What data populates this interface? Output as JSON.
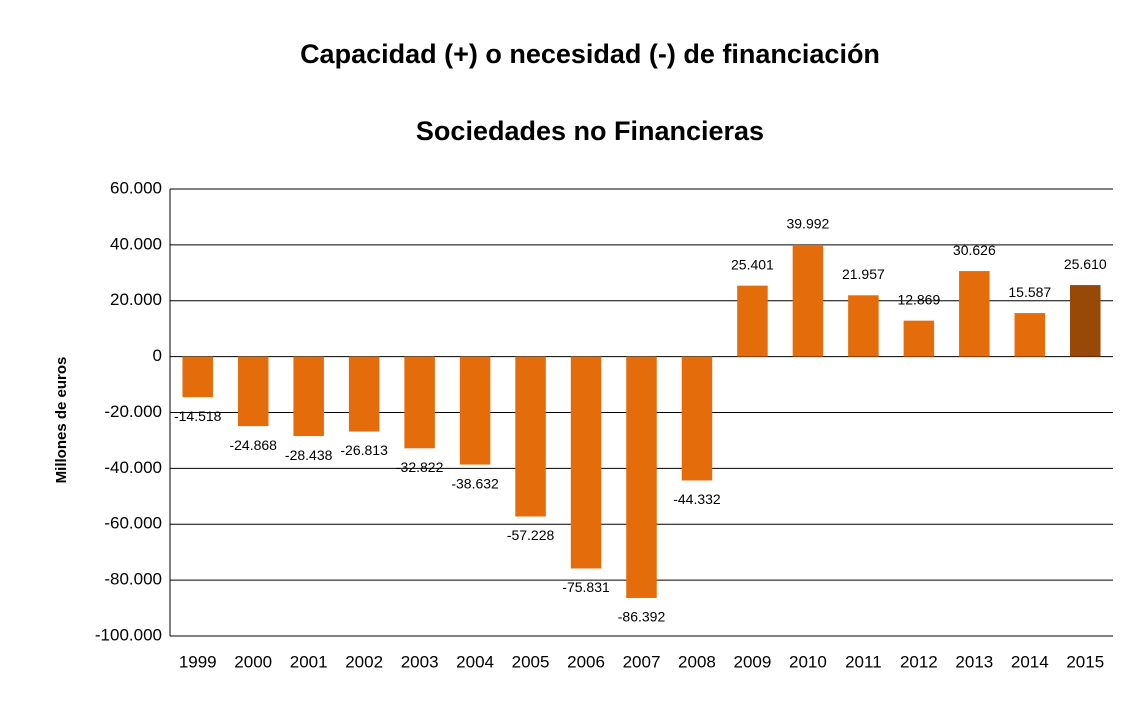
{
  "chart_data": {
    "type": "bar",
    "title": "Capacidad (+) o necesidad (-) de financiación",
    "subtitle": "Sociedades no Financieras",
    "y_label": "Millones  de euros",
    "categories": [
      "1999",
      "2000",
      "2001",
      "2002",
      "2003",
      "2004",
      "2005",
      "2006",
      "2007",
      "2008",
      "2009",
      "2010",
      "2011",
      "2012",
      "2013",
      "2014",
      "2015"
    ],
    "values": [
      -14518,
      -24868,
      -28438,
      -26813,
      -32822,
      -38632,
      -57228,
      -75831,
      -86392,
      -44332,
      25401,
      39992,
      21957,
      12869,
      30626,
      15587,
      25610
    ],
    "value_labels": [
      "-14.518",
      "-24.868",
      "-28.438",
      "-26.813",
      "-32.822",
      "-38.632",
      "-57.228",
      "-75.831",
      "-86.392",
      "-44.332",
      "25.401",
      "39.992",
      "21.957",
      "12.869",
      "30.626",
      "15.587",
      "25.610"
    ],
    "colors": [
      "#e46c0a",
      "#e46c0a",
      "#e46c0a",
      "#e46c0a",
      "#e46c0a",
      "#e46c0a",
      "#e46c0a",
      "#e46c0a",
      "#e46c0a",
      "#e46c0a",
      "#e46c0a",
      "#e46c0a",
      "#e46c0a",
      "#e46c0a",
      "#e46c0a",
      "#e46c0a",
      "#984807"
    ],
    "ylim": [
      -100000,
      60000
    ],
    "yticks": [
      {
        "value": -100000,
        "label": "-100.000"
      },
      {
        "value": -80000,
        "label": "-80.000"
      },
      {
        "value": -60000,
        "label": "-60.000"
      },
      {
        "value": -40000,
        "label": "-40.000"
      },
      {
        "value": -20000,
        "label": "-20.000"
      },
      0,
      {
        "value": 20000,
        "label": "20.000"
      },
      {
        "value": 40000,
        "label": "40.000"
      },
      {
        "value": 60000,
        "label": "60.000"
      }
    ],
    "grid": true
  }
}
